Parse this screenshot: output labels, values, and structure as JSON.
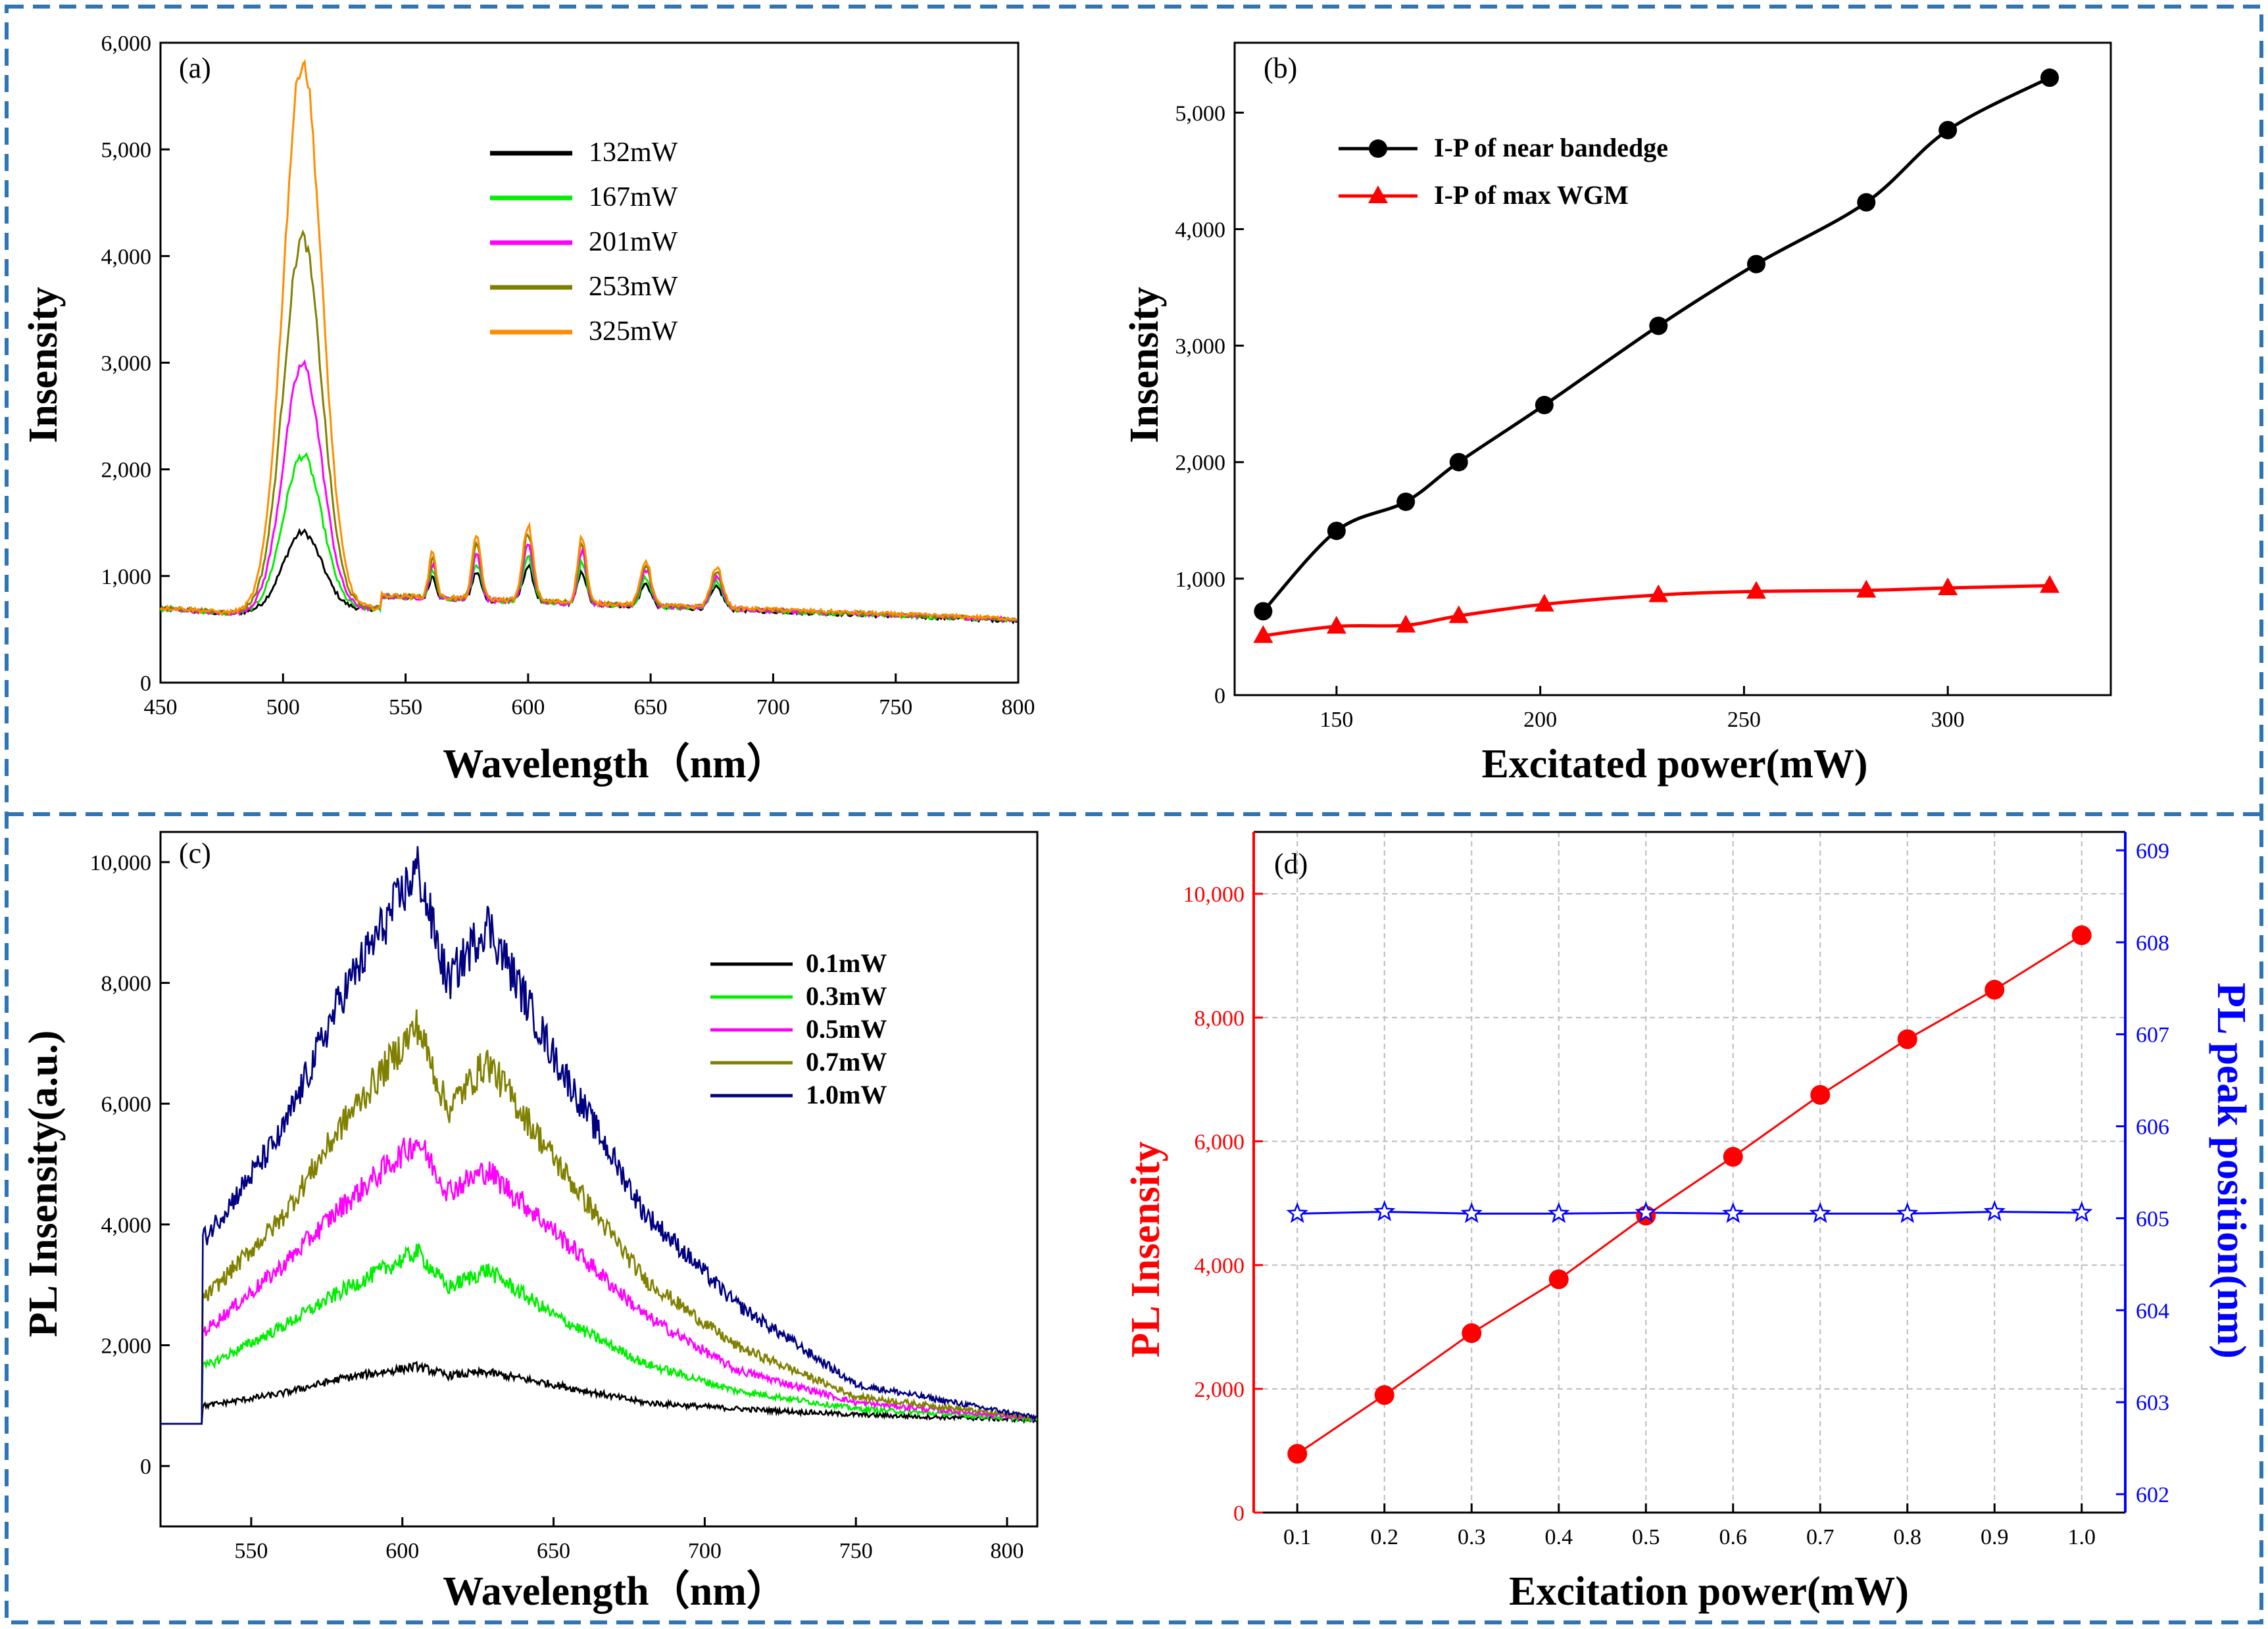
{
  "panels": {
    "a": {
      "label": "(a)"
    },
    "b": {
      "label": "(b)"
    },
    "c": {
      "label": "(c)"
    },
    "d": {
      "label": "(d)"
    }
  },
  "colors": {
    "frame": "#2e75b6",
    "black": "#000000",
    "green": "#00ee00",
    "magenta": "#ff00ff",
    "olive": "#808000",
    "orange": "#ff8c00",
    "navy": "#000080",
    "red": "#ff0000",
    "blue": "#0000ff"
  },
  "chart_data": [
    {
      "id": "a",
      "type": "line",
      "title": "",
      "xlabel": "Wavelength（nm）",
      "ylabel": "Insensity",
      "xlim": [
        450,
        800
      ],
      "ylim": [
        0,
        6000
      ],
      "xticks": [
        "450",
        "500",
        "550",
        "600",
        "650",
        "700",
        "750",
        "800"
      ],
      "yticks": [
        "0",
        "1,000",
        "2,000",
        "3,000",
        "4,000",
        "5,000",
        "6,000"
      ],
      "legend_position": "top-center",
      "peak_nm": [
        508,
        561,
        579,
        600,
        622,
        648,
        677
      ],
      "series": [
        {
          "name": "132mW",
          "color": "#000000",
          "baseline": 690,
          "end_value": 640,
          "peak_heights": [
            1410,
            900,
            950,
            1020,
            990,
            900,
            890
          ]
        },
        {
          "name": "167mW",
          "color": "#00ee00",
          "baseline": 690,
          "end_value": 645,
          "peak_heights": [
            2130,
            950,
            1030,
            1120,
            1090,
            970,
            940
          ]
        },
        {
          "name": "201mW",
          "color": "#ff00ff",
          "baseline": 690,
          "end_value": 650,
          "peak_heights": [
            2980,
            1010,
            1120,
            1220,
            1180,
            1030,
            990
          ]
        },
        {
          "name": "253mW",
          "color": "#808000",
          "baseline": 700,
          "end_value": 655,
          "peak_heights": [
            4170,
            1080,
            1210,
            1330,
            1260,
            1080,
            1030
          ]
        },
        {
          "name": "325mW",
          "color": "#ff8c00",
          "baseline": 700,
          "end_value": 660,
          "peak_heights": [
            5830,
            1140,
            1290,
            1400,
            1320,
            1120,
            1070
          ]
        }
      ]
    },
    {
      "id": "b",
      "type": "line",
      "title": "",
      "xlabel": "Excitated power(mW)",
      "ylabel": "Insensity",
      "xlim": [
        125,
        340
      ],
      "ylim": [
        0,
        5600
      ],
      "xticks": [
        150,
        200,
        250,
        300
      ],
      "xtick_labels": [
        "150",
        "200",
        "250",
        "300"
      ],
      "yticks": [
        0,
        1000,
        2000,
        3000,
        4000,
        5000
      ],
      "ytick_labels": [
        "0",
        "1,000",
        "2,000",
        "3,000",
        "4,000",
        "5,000"
      ],
      "legend_position": "top-left",
      "series": [
        {
          "name": "I-P of near bandedge",
          "color": "#000000",
          "marker": "circle",
          "x": [
            132,
            150,
            167,
            180,
            201,
            229,
            253,
            280,
            300,
            325
          ],
          "y": [
            720,
            1410,
            1660,
            2000,
            2490,
            3170,
            3700,
            4230,
            4850,
            5300
          ]
        },
        {
          "name": "I-P of max  WGM",
          "color": "#ff0000",
          "marker": "triangle",
          "x": [
            132,
            150,
            167,
            180,
            201,
            229,
            253,
            280,
            300,
            325
          ],
          "y": [
            510,
            590,
            600,
            680,
            780,
            860,
            890,
            900,
            920,
            940
          ]
        }
      ]
    },
    {
      "id": "c",
      "type": "line",
      "title": "",
      "xlabel": "Wavelength（nm）",
      "ylabel": "PL Insensity(a.u.)",
      "xlim": [
        520,
        810
      ],
      "ylim": [
        -1000,
        10500
      ],
      "xticks": [
        550,
        600,
        650,
        700,
        750,
        800
      ],
      "xtick_labels": [
        "550",
        "600",
        "650",
        "700",
        "750",
        "800"
      ],
      "yticks": [
        0,
        2000,
        4000,
        6000,
        8000,
        10000
      ],
      "ytick_labels": [
        "0",
        "2,000",
        "4,000",
        "6,000",
        "8,000",
        "10,000"
      ],
      "legend_position": "top-right",
      "series": [
        {
          "name": "0.1mW",
          "color": "#000000",
          "pre_edge": 700,
          "x": [
            535,
            560,
            580,
            605,
            615,
            628,
            650,
            680,
            710,
            750,
            810
          ],
          "y": [
            1000,
            1200,
            1450,
            1650,
            1500,
            1550,
            1350,
            1050,
            950,
            850,
            760
          ]
        },
        {
          "name": "0.3mW",
          "color": "#00ee00",
          "pre_edge": 700,
          "x": [
            535,
            560,
            580,
            605,
            615,
            628,
            650,
            680,
            710,
            750,
            810
          ],
          "y": [
            1650,
            2300,
            2900,
            3550,
            2950,
            3250,
            2500,
            1700,
            1250,
            950,
            770
          ]
        },
        {
          "name": "0.5mW",
          "color": "#ff00ff",
          "pre_edge": 700,
          "x": [
            535,
            560,
            580,
            605,
            615,
            628,
            650,
            680,
            710,
            750,
            810
          ],
          "y": [
            2250,
            3300,
            4300,
            5400,
            4550,
            4900,
            3900,
            2500,
            1600,
            1050,
            780
          ]
        },
        {
          "name": "0.7mW",
          "color": "#808000",
          "pre_edge": 700,
          "x": [
            535,
            560,
            580,
            605,
            615,
            628,
            650,
            680,
            710,
            750,
            810
          ],
          "y": [
            2800,
            4100,
            5650,
            7300,
            5900,
            6700,
            5100,
            3100,
            2000,
            1150,
            790
          ]
        },
        {
          "name": "1.0mW",
          "color": "#000080",
          "pre_edge": 700,
          "x": [
            535,
            560,
            580,
            605,
            615,
            628,
            650,
            680,
            710,
            750,
            810
          ],
          "y": [
            3800,
            5500,
            7800,
            9900,
            8000,
            9000,
            6800,
            4200,
            2700,
            1350,
            800
          ]
        }
      ]
    },
    {
      "id": "d",
      "type": "line",
      "title": "",
      "xlabel": "Excitation power(mW)",
      "ylabel": "PL Insensity",
      "y2label": "PL peak position(nm)",
      "xlim": [
        0.05,
        1.05
      ],
      "ylim": [
        0,
        11000
      ],
      "y2lim": [
        601.8,
        609.2
      ],
      "xticks": [
        0.1,
        0.2,
        0.3,
        0.4,
        0.5,
        0.6,
        0.7,
        0.8,
        0.9,
        1.0
      ],
      "xtick_labels": [
        "0.1",
        "0.2",
        "0.3",
        "0.4",
        "0.5",
        "0.6",
        "0.7",
        "0.8",
        "0.9",
        "1.0"
      ],
      "yticks": [
        0,
        2000,
        4000,
        6000,
        8000,
        10000
      ],
      "ytick_labels": [
        "0",
        "2,000",
        "4,000",
        "6,000",
        "8,000",
        "10,000"
      ],
      "y2ticks": [
        602,
        603,
        604,
        605,
        606,
        607,
        608,
        609
      ],
      "y2tick_labels": [
        "602",
        "603",
        "604",
        "605",
        "606",
        "607",
        "608",
        "609"
      ],
      "grid": true,
      "series": [
        {
          "name": "PL Insensity",
          "axis": "left",
          "color": "#ff0000",
          "marker": "circle",
          "x": [
            0.1,
            0.2,
            0.3,
            0.4,
            0.5,
            0.6,
            0.7,
            0.8,
            0.9,
            1.0
          ],
          "y": [
            950,
            1900,
            2900,
            3770,
            4800,
            5750,
            6750,
            7650,
            8450,
            9330
          ]
        },
        {
          "name": "PL peak position(nm)",
          "axis": "right",
          "color": "#0000ff",
          "marker": "star",
          "x": [
            0.1,
            0.2,
            0.3,
            0.4,
            0.5,
            0.6,
            0.7,
            0.8,
            0.9,
            1.0
          ],
          "y": [
            605.05,
            605.07,
            605.05,
            605.05,
            605.06,
            605.05,
            605.05,
            605.05,
            605.07,
            605.06
          ]
        }
      ]
    }
  ]
}
